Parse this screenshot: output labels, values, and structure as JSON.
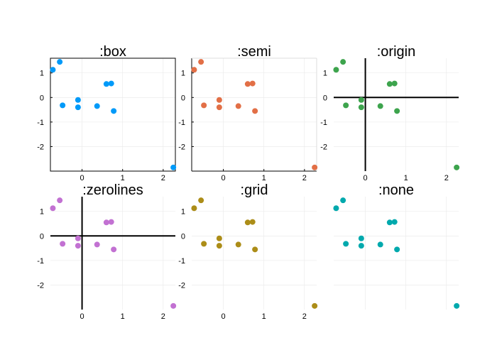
{
  "chart_data": {
    "type": "scatter",
    "shared_data": {
      "x": [
        -0.72,
        -0.55,
        -0.48,
        -0.1,
        -0.1,
        0.37,
        0.6,
        0.72,
        0.78,
        2.25
      ],
      "y": [
        1.13,
        1.45,
        -0.32,
        -0.1,
        -0.4,
        -0.35,
        0.55,
        0.57,
        -0.55,
        -2.85
      ]
    },
    "xlim": [
      -0.78,
      2.3
    ],
    "ylim": [
      -3.0,
      1.6
    ],
    "panels": [
      {
        "title": ":box",
        "frame": "box",
        "color": "#009af9",
        "xticks": [
          "0",
          "1",
          "2"
        ],
        "yticks": [
          "1",
          "0",
          "-1",
          "-2"
        ]
      },
      {
        "title": ":semi",
        "frame": "semi",
        "color": "#e26f46",
        "xticks": [
          "0",
          "1",
          "2"
        ],
        "yticks": [
          "1",
          "0",
          "-1",
          "-2"
        ]
      },
      {
        "title": ":origin",
        "frame": "origin",
        "color": "#3da44d",
        "xticks": [
          "0",
          "1",
          "2"
        ],
        "yticks": [
          "1",
          "0",
          "-1",
          "-2"
        ]
      },
      {
        "title": ":zerolines",
        "frame": "zerolines",
        "color": "#c271d2",
        "xticks": [
          "0",
          "1",
          "2"
        ],
        "yticks": [
          "1",
          "0",
          "-1",
          "-2"
        ]
      },
      {
        "title": ":grid",
        "frame": "grid",
        "color": "#ac8d18",
        "xticks": [
          "0",
          "1",
          "2"
        ],
        "yticks": [
          "1",
          "0",
          "-1",
          "-2"
        ]
      },
      {
        "title": ":none",
        "frame": "none",
        "color": "#00a9ad",
        "xticks": [],
        "yticks": []
      }
    ],
    "grid": true,
    "legend": "none"
  }
}
